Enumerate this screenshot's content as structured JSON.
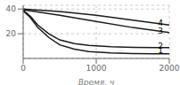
{
  "chart_data": {
    "type": "line",
    "xlabel": "Время, ч",
    "xlim": [
      0,
      2000
    ],
    "ylim": [
      0,
      43
    ],
    "xticks": [
      0,
      1000,
      2000
    ],
    "yticks": [
      20,
      40
    ],
    "grid": true,
    "series": [
      {
        "color": "#1a1a1a",
        "x": [
          0,
          100,
          200,
          350,
          500,
          700,
          900,
          1200,
          1500,
          1800,
          2000
        ],
        "values": [
          38.5,
          33,
          25,
          17,
          11,
          7.5,
          5.5,
          4.5,
          4.0,
          3.8,
          3.7
        ]
      },
      {
        "color": "#1a1a1a",
        "x": [
          0,
          100,
          200,
          350,
          500,
          700,
          900,
          1200,
          1500,
          1800,
          2000
        ],
        "values": [
          39.0,
          34,
          27,
          20,
          15,
          12,
          10.5,
          9.5,
          9.0,
          8.8,
          8.7
        ]
      },
      {
        "color": "#1a1a1a",
        "x": [
          0,
          500,
          1000,
          1500,
          2000
        ],
        "values": [
          39.5,
          35,
          30,
          25,
          21
        ]
      },
      {
        "color": "#1a1a1a",
        "x": [
          0,
          500,
          1000,
          1500,
          2000
        ],
        "values": [
          40.0,
          38,
          35,
          31,
          27
        ]
      }
    ],
    "annotations": [
      {
        "text": "1",
        "x": 1820,
        "y": 6.5
      },
      {
        "text": "2",
        "x": 1820,
        "y": 10.5
      },
      {
        "text": "3",
        "x": 1820,
        "y": 22.5
      },
      {
        "text": "4",
        "x": 1820,
        "y": 28.5
      }
    ]
  }
}
